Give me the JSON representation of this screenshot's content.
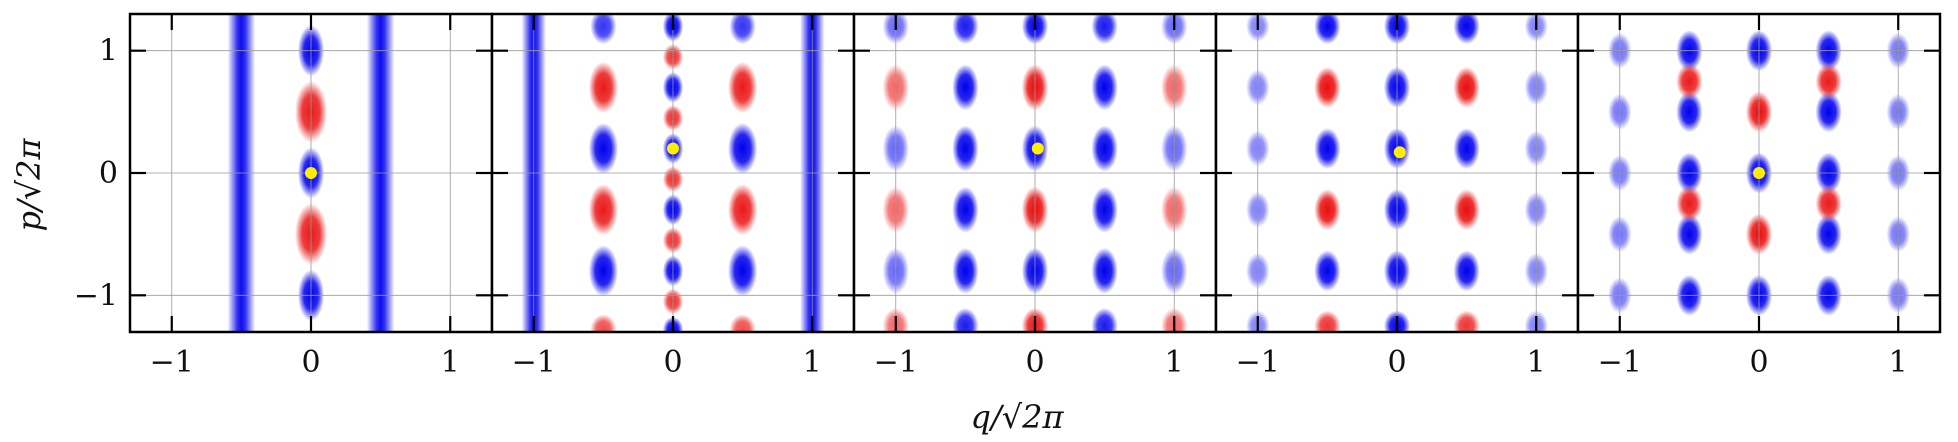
{
  "chart_data": {
    "type": "heatmap",
    "xlabel": "q/√2π",
    "ylabel": "p/√2π",
    "xlim": [
      -1.3,
      1.3
    ],
    "ylim": [
      -1.3,
      1.3
    ],
    "grid": true,
    "colors": {
      "negative": "#0000ee",
      "positive": "#e80000",
      "background": "#ffffff",
      "marker": "#ffee00"
    },
    "xticks": [
      {
        "value": -1,
        "label": "−1"
      },
      {
        "value": 0,
        "label": "0"
      },
      {
        "value": 1,
        "label": "1"
      }
    ],
    "yticks": [
      {
        "value": 1,
        "label": "1"
      },
      {
        "value": 0,
        "label": "0"
      },
      {
        "value": -1,
        "label": "−1"
      }
    ],
    "panels": [
      {
        "name": "panel-1",
        "marker": [
          0.0,
          0.0
        ],
        "stripes": [
          {
            "q": -0.5,
            "w": 0.045
          },
          {
            "q": 0.5,
            "w": 0.045
          }
        ],
        "blobs": [
          {
            "q": 0,
            "p": 1.0,
            "v": -1,
            "rq": 0.045,
            "rp": 0.1
          },
          {
            "q": 0,
            "p": 0.5,
            "v": 0.9,
            "rq": 0.055,
            "rp": 0.12
          },
          {
            "q": 0,
            "p": 0.0,
            "v": -1,
            "rq": 0.045,
            "rp": 0.1
          },
          {
            "q": 0,
            "p": -0.5,
            "v": 0.9,
            "rq": 0.055,
            "rp": 0.12
          },
          {
            "q": 0,
            "p": -1.0,
            "v": -1,
            "rq": 0.045,
            "rp": 0.1
          }
        ]
      },
      {
        "name": "panel-2",
        "marker": [
          0.0,
          0.2
        ],
        "stripes": [
          {
            "q": -1.0,
            "w": 0.04
          },
          {
            "q": 1.0,
            "w": 0.04
          }
        ],
        "blobs": [
          {
            "q": -0.5,
            "p": 0.7,
            "v": 0.9,
            "rq": 0.05,
            "rp": 0.1
          },
          {
            "q": -0.5,
            "p": 0.2,
            "v": -1,
            "rq": 0.05,
            "rp": 0.1
          },
          {
            "q": -0.5,
            "p": -0.3,
            "v": 0.9,
            "rq": 0.05,
            "rp": 0.1
          },
          {
            "q": -0.5,
            "p": -0.8,
            "v": -1,
            "rq": 0.05,
            "rp": 0.1
          },
          {
            "q": 0.5,
            "p": 0.7,
            "v": 0.9,
            "rq": 0.05,
            "rp": 0.1
          },
          {
            "q": 0.5,
            "p": 0.2,
            "v": -1,
            "rq": 0.05,
            "rp": 0.1
          },
          {
            "q": 0.5,
            "p": -0.3,
            "v": 0.9,
            "rq": 0.05,
            "rp": 0.1
          },
          {
            "q": 0.5,
            "p": -0.8,
            "v": -1,
            "rq": 0.05,
            "rp": 0.1
          },
          {
            "q": 0,
            "p": 1.2,
            "v": -1,
            "rq": 0.035,
            "rp": 0.06
          },
          {
            "q": 0,
            "p": 0.95,
            "v": 0.8,
            "rq": 0.035,
            "rp": 0.05
          },
          {
            "q": 0,
            "p": 0.7,
            "v": -1,
            "rq": 0.035,
            "rp": 0.06
          },
          {
            "q": 0,
            "p": 0.45,
            "v": 0.8,
            "rq": 0.035,
            "rp": 0.05
          },
          {
            "q": 0,
            "p": 0.2,
            "v": -1,
            "rq": 0.035,
            "rp": 0.06
          },
          {
            "q": 0,
            "p": -0.05,
            "v": 0.8,
            "rq": 0.035,
            "rp": 0.05
          },
          {
            "q": 0,
            "p": -0.3,
            "v": -1,
            "rq": 0.035,
            "rp": 0.06
          },
          {
            "q": 0,
            "p": -0.55,
            "v": 0.8,
            "rq": 0.035,
            "rp": 0.05
          },
          {
            "q": 0,
            "p": -0.8,
            "v": -1,
            "rq": 0.035,
            "rp": 0.06
          },
          {
            "q": 0,
            "p": -1.05,
            "v": 0.8,
            "rq": 0.035,
            "rp": 0.05
          },
          {
            "q": 0,
            "p": -1.28,
            "v": -1,
            "rq": 0.035,
            "rp": 0.05
          },
          {
            "q": -0.5,
            "p": 1.2,
            "v": -0.8,
            "rq": 0.045,
            "rp": 0.07
          },
          {
            "q": 0.5,
            "p": 1.2,
            "v": -0.8,
            "rq": 0.045,
            "rp": 0.07
          },
          {
            "q": -0.5,
            "p": -1.28,
            "v": 0.7,
            "rq": 0.045,
            "rp": 0.06
          },
          {
            "q": 0.5,
            "p": -1.28,
            "v": 0.7,
            "rq": 0.045,
            "rp": 0.06
          }
        ]
      },
      {
        "name": "panel-3",
        "marker": [
          0.02,
          0.2
        ],
        "stripes": [],
        "blobs": [
          {
            "q": -1,
            "p": 0.7,
            "v": 0.6,
            "rq": 0.045,
            "rp": 0.09
          },
          {
            "q": -1,
            "p": 0.2,
            "v": -0.6,
            "rq": 0.045,
            "rp": 0.09
          },
          {
            "q": -1,
            "p": -0.3,
            "v": 0.6,
            "rq": 0.045,
            "rp": 0.09
          },
          {
            "q": -1,
            "p": -0.8,
            "v": -0.6,
            "rq": 0.045,
            "rp": 0.09
          },
          {
            "q": -1,
            "p": -1.25,
            "v": 0.6,
            "rq": 0.045,
            "rp": 0.07
          },
          {
            "q": -1,
            "p": 1.2,
            "v": -0.6,
            "rq": 0.045,
            "rp": 0.07
          },
          {
            "q": -0.5,
            "p": 1.2,
            "v": -0.9,
            "rq": 0.045,
            "rp": 0.07
          },
          {
            "q": -0.5,
            "p": 0.7,
            "v": -1,
            "rq": 0.045,
            "rp": 0.09
          },
          {
            "q": -0.5,
            "p": 0.2,
            "v": -1,
            "rq": 0.045,
            "rp": 0.09
          },
          {
            "q": -0.5,
            "p": -0.3,
            "v": -1,
            "rq": 0.045,
            "rp": 0.09
          },
          {
            "q": -0.5,
            "p": -0.8,
            "v": -1,
            "rq": 0.045,
            "rp": 0.09
          },
          {
            "q": -0.5,
            "p": -1.25,
            "v": -0.9,
            "rq": 0.045,
            "rp": 0.07
          },
          {
            "q": 0,
            "p": 1.2,
            "v": -1,
            "rq": 0.045,
            "rp": 0.07
          },
          {
            "q": 0,
            "p": 0.7,
            "v": 0.95,
            "rq": 0.045,
            "rp": 0.09
          },
          {
            "q": 0,
            "p": 0.2,
            "v": -1,
            "rq": 0.045,
            "rp": 0.09
          },
          {
            "q": 0,
            "p": -0.3,
            "v": 0.95,
            "rq": 0.045,
            "rp": 0.09
          },
          {
            "q": 0,
            "p": -0.8,
            "v": -1,
            "rq": 0.045,
            "rp": 0.09
          },
          {
            "q": 0,
            "p": -1.25,
            "v": 0.9,
            "rq": 0.045,
            "rp": 0.07
          },
          {
            "q": 0.5,
            "p": 1.2,
            "v": -0.9,
            "rq": 0.045,
            "rp": 0.07
          },
          {
            "q": 0.5,
            "p": 0.7,
            "v": -1,
            "rq": 0.045,
            "rp": 0.09
          },
          {
            "q": 0.5,
            "p": 0.2,
            "v": -1,
            "rq": 0.045,
            "rp": 0.09
          },
          {
            "q": 0.5,
            "p": -0.3,
            "v": -1,
            "rq": 0.045,
            "rp": 0.09
          },
          {
            "q": 0.5,
            "p": -0.8,
            "v": -1,
            "rq": 0.045,
            "rp": 0.09
          },
          {
            "q": 0.5,
            "p": -1.25,
            "v": -0.9,
            "rq": 0.045,
            "rp": 0.07
          },
          {
            "q": 1,
            "p": 0.7,
            "v": 0.6,
            "rq": 0.045,
            "rp": 0.09
          },
          {
            "q": 1,
            "p": 0.2,
            "v": -0.6,
            "rq": 0.045,
            "rp": 0.09
          },
          {
            "q": 1,
            "p": -0.3,
            "v": 0.6,
            "rq": 0.045,
            "rp": 0.09
          },
          {
            "q": 1,
            "p": -0.8,
            "v": -0.6,
            "rq": 0.045,
            "rp": 0.09
          },
          {
            "q": 1,
            "p": -1.25,
            "v": 0.6,
            "rq": 0.045,
            "rp": 0.07
          },
          {
            "q": 1,
            "p": 1.2,
            "v": -0.6,
            "rq": 0.045,
            "rp": 0.07
          }
        ]
      },
      {
        "name": "panel-4",
        "marker": [
          0.02,
          0.17
        ],
        "stripes": [],
        "blobs": [
          {
            "q": -1,
            "p": 1.2,
            "v": -0.5,
            "rq": 0.04,
            "rp": 0.06
          },
          {
            "q": -1,
            "p": 0.7,
            "v": -0.5,
            "rq": 0.04,
            "rp": 0.07
          },
          {
            "q": -1,
            "p": 0.2,
            "v": -0.5,
            "rq": 0.04,
            "rp": 0.07
          },
          {
            "q": -1,
            "p": -0.3,
            "v": -0.5,
            "rq": 0.04,
            "rp": 0.07
          },
          {
            "q": -1,
            "p": -0.8,
            "v": -0.5,
            "rq": 0.04,
            "rp": 0.07
          },
          {
            "q": -1,
            "p": -1.25,
            "v": -0.5,
            "rq": 0.04,
            "rp": 0.06
          },
          {
            "q": -0.5,
            "p": 1.2,
            "v": -1,
            "rq": 0.045,
            "rp": 0.07
          },
          {
            "q": -0.5,
            "p": 0.7,
            "v": 0.95,
            "rq": 0.045,
            "rp": 0.08
          },
          {
            "q": -0.5,
            "p": 0.2,
            "v": -1,
            "rq": 0.045,
            "rp": 0.08
          },
          {
            "q": -0.5,
            "p": -0.3,
            "v": 0.95,
            "rq": 0.045,
            "rp": 0.08
          },
          {
            "q": -0.5,
            "p": -0.8,
            "v": -1,
            "rq": 0.045,
            "rp": 0.08
          },
          {
            "q": -0.5,
            "p": -1.25,
            "v": 0.8,
            "rq": 0.045,
            "rp": 0.06
          },
          {
            "q": 0,
            "p": 1.2,
            "v": -1,
            "rq": 0.045,
            "rp": 0.07
          },
          {
            "q": 0,
            "p": 0.7,
            "v": -1,
            "rq": 0.045,
            "rp": 0.08
          },
          {
            "q": 0,
            "p": 0.2,
            "v": -1,
            "rq": 0.045,
            "rp": 0.08
          },
          {
            "q": 0,
            "p": -0.3,
            "v": -1,
            "rq": 0.045,
            "rp": 0.08
          },
          {
            "q": 0,
            "p": -0.8,
            "v": -1,
            "rq": 0.045,
            "rp": 0.08
          },
          {
            "q": 0,
            "p": -1.25,
            "v": -1,
            "rq": 0.045,
            "rp": 0.06
          },
          {
            "q": 0.5,
            "p": 1.2,
            "v": -1,
            "rq": 0.045,
            "rp": 0.07
          },
          {
            "q": 0.5,
            "p": 0.7,
            "v": 0.95,
            "rq": 0.045,
            "rp": 0.08
          },
          {
            "q": 0.5,
            "p": 0.2,
            "v": -1,
            "rq": 0.045,
            "rp": 0.08
          },
          {
            "q": 0.5,
            "p": -0.3,
            "v": 0.95,
            "rq": 0.045,
            "rp": 0.08
          },
          {
            "q": 0.5,
            "p": -0.8,
            "v": -1,
            "rq": 0.045,
            "rp": 0.08
          },
          {
            "q": 0.5,
            "p": -1.25,
            "v": 0.8,
            "rq": 0.045,
            "rp": 0.06
          },
          {
            "q": 1,
            "p": 1.2,
            "v": -0.5,
            "rq": 0.04,
            "rp": 0.06
          },
          {
            "q": 1,
            "p": 0.7,
            "v": -0.5,
            "rq": 0.04,
            "rp": 0.07
          },
          {
            "q": 1,
            "p": 0.2,
            "v": -0.5,
            "rq": 0.04,
            "rp": 0.07
          },
          {
            "q": 1,
            "p": -0.3,
            "v": -0.5,
            "rq": 0.04,
            "rp": 0.07
          },
          {
            "q": 1,
            "p": -0.8,
            "v": -0.5,
            "rq": 0.04,
            "rp": 0.07
          },
          {
            "q": 1,
            "p": -1.25,
            "v": -0.5,
            "rq": 0.04,
            "rp": 0.06
          }
        ]
      },
      {
        "name": "panel-5",
        "marker": [
          0.0,
          0.0
        ],
        "stripes": [],
        "blobs": [
          {
            "q": -1,
            "p": 1.0,
            "v": -0.55,
            "rq": 0.04,
            "rp": 0.07
          },
          {
            "q": -1,
            "p": 0.5,
            "v": -0.55,
            "rq": 0.04,
            "rp": 0.07
          },
          {
            "q": -1,
            "p": 0.0,
            "v": -0.55,
            "rq": 0.04,
            "rp": 0.07
          },
          {
            "q": -1,
            "p": -0.5,
            "v": -0.55,
            "rq": 0.04,
            "rp": 0.07
          },
          {
            "q": -1,
            "p": -1.0,
            "v": -0.55,
            "rq": 0.04,
            "rp": 0.07
          },
          {
            "q": -0.5,
            "p": 1.0,
            "v": -1,
            "rq": 0.045,
            "rp": 0.08
          },
          {
            "q": -0.5,
            "p": 0.5,
            "v": -1,
            "rq": 0.045,
            "rp": 0.08
          },
          {
            "q": -0.5,
            "p": 0.0,
            "v": -1,
            "rq": 0.045,
            "rp": 0.08
          },
          {
            "q": -0.5,
            "p": -0.5,
            "v": -1,
            "rq": 0.045,
            "rp": 0.08
          },
          {
            "q": -0.5,
            "p": -1.0,
            "v": -1,
            "rq": 0.045,
            "rp": 0.08
          },
          {
            "q": 0,
            "p": 1.0,
            "v": -1,
            "rq": 0.045,
            "rp": 0.08
          },
          {
            "q": 0,
            "p": 0.5,
            "v": 0.95,
            "rq": 0.045,
            "rp": 0.08
          },
          {
            "q": 0,
            "p": 0.0,
            "v": -1,
            "rq": 0.045,
            "rp": 0.08
          },
          {
            "q": 0,
            "p": -0.5,
            "v": 0.95,
            "rq": 0.045,
            "rp": 0.08
          },
          {
            "q": 0,
            "p": -1.0,
            "v": -1,
            "rq": 0.045,
            "rp": 0.08
          },
          {
            "q": 0.5,
            "p": 1.0,
            "v": -1,
            "rq": 0.045,
            "rp": 0.08
          },
          {
            "q": 0.5,
            "p": 0.5,
            "v": -1,
            "rq": 0.045,
            "rp": 0.08
          },
          {
            "q": 0.5,
            "p": 0.0,
            "v": -1,
            "rq": 0.045,
            "rp": 0.08
          },
          {
            "q": 0.5,
            "p": -0.5,
            "v": -1,
            "rq": 0.045,
            "rp": 0.08
          },
          {
            "q": 0.5,
            "p": -1.0,
            "v": -1,
            "rq": 0.045,
            "rp": 0.08
          },
          {
            "q": 1,
            "p": 1.0,
            "v": -0.55,
            "rq": 0.04,
            "rp": 0.07
          },
          {
            "q": 1,
            "p": 0.5,
            "v": -0.55,
            "rq": 0.04,
            "rp": 0.07
          },
          {
            "q": 1,
            "p": 0.0,
            "v": -0.55,
            "rq": 0.04,
            "rp": 0.07
          },
          {
            "q": 1,
            "p": -0.5,
            "v": -0.55,
            "rq": 0.04,
            "rp": 0.07
          },
          {
            "q": 1,
            "p": -1.0,
            "v": -0.55,
            "rq": 0.04,
            "rp": 0.07
          },
          {
            "q": -0.5,
            "p": 0.75,
            "v": 0.9,
            "rq": 0.045,
            "rp": 0.07
          },
          {
            "q": 0.5,
            "p": 0.75,
            "v": 0.9,
            "rq": 0.045,
            "rp": 0.07
          },
          {
            "q": -0.5,
            "p": -0.25,
            "v": 0.9,
            "rq": 0.045,
            "rp": 0.07
          },
          {
            "q": 0.5,
            "p": -0.25,
            "v": 0.9,
            "rq": 0.045,
            "rp": 0.07
          }
        ]
      }
    ]
  }
}
